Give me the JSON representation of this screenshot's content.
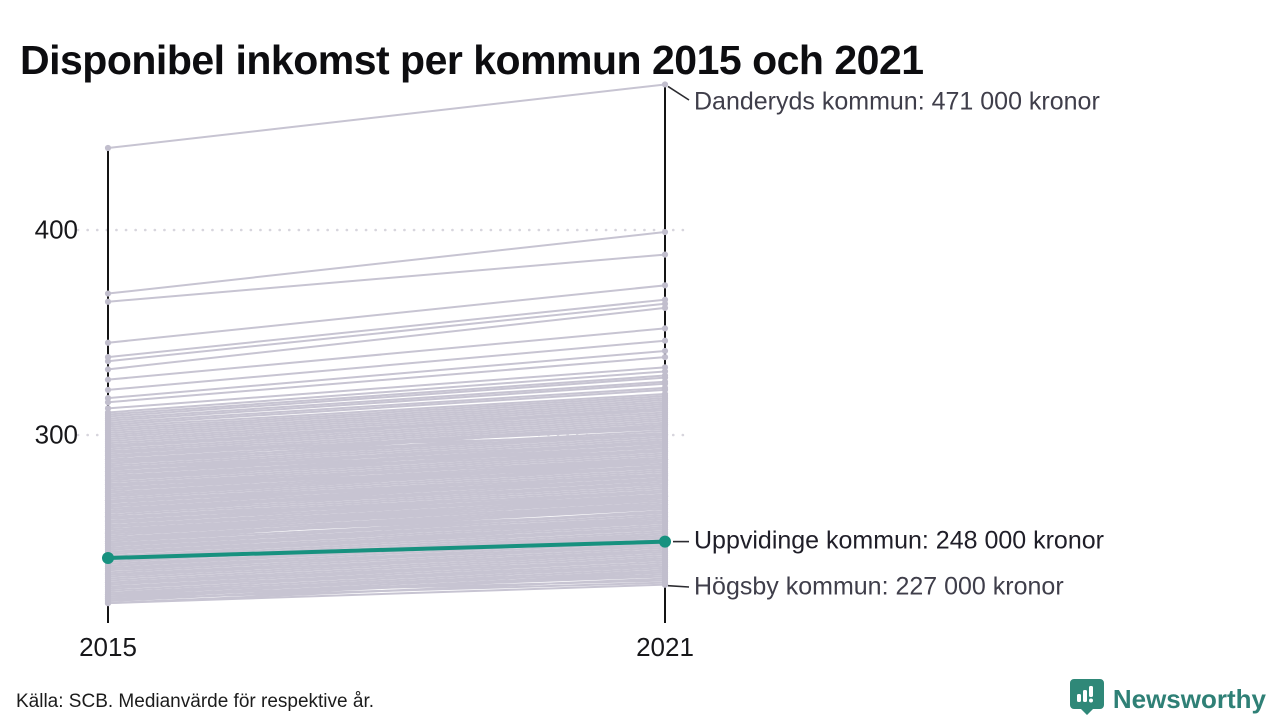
{
  "header": {
    "title": "Disponibel inkomst per kommun 2015 och 2021"
  },
  "footer": {
    "source": "Källa: SCB. Medianvärde för respektive år."
  },
  "brand": {
    "name": "Newsworthy",
    "logo_icon": "bar-chart-speech-bubble-icon",
    "color": "#2f8076"
  },
  "colors": {
    "background_line": "#c7c4d2",
    "background_dot": "#c1becd",
    "highlight": "#17917f",
    "axis": "#141414",
    "gridline": "#d7d5dd",
    "annotation_text": "#3f3e4a",
    "annotation_primary_text": "#1f1e28"
  },
  "chart_data": {
    "type": "line",
    "subtype": "slope-chart",
    "title": "Disponibel inkomst per kommun 2015 och 2021",
    "x_categories": [
      "2015",
      "2021"
    ],
    "xlabel": "",
    "ylabel": "",
    "yticks": [
      400,
      300
    ],
    "ylim": [
      207,
      476
    ],
    "grid": "dotted-horizontal",
    "legend": "none",
    "highlight_series": {
      "name": "Uppvidinge kommun",
      "values": [
        240,
        248
      ],
      "color": "#17917f"
    },
    "annotations": [
      {
        "id": "danderyd",
        "text": "Danderyds kommun: 471 000 kronor",
        "year": "2021",
        "value": 471,
        "style": "secondary"
      },
      {
        "id": "uppvidinge",
        "text": "Uppvidinge kommun: 248 000 kronor",
        "year": "2021",
        "value": 248,
        "style": "primary"
      },
      {
        "id": "hogsby",
        "text": "Högsby kommun: 227 000 kronor",
        "year": "2021",
        "value": 227,
        "style": "secondary"
      }
    ],
    "background_lines": [
      [
        440,
        471
      ],
      [
        369,
        399
      ],
      [
        365,
        388
      ],
      [
        345,
        373
      ],
      [
        338,
        366
      ],
      [
        336,
        364
      ],
      [
        332,
        362
      ],
      [
        327,
        352
      ],
      [
        322,
        346
      ],
      [
        318,
        341
      ],
      [
        316,
        338
      ],
      [
        313,
        333
      ],
      [
        311,
        331
      ],
      [
        310,
        329
      ],
      [
        309,
        328
      ],
      [
        308,
        326
      ],
      [
        307,
        325
      ],
      [
        306,
        323
      ],
      [
        305,
        322
      ],
      [
        304,
        320
      ],
      [
        303,
        319
      ],
      [
        302,
        318
      ],
      [
        301,
        317
      ],
      [
        300,
        316
      ],
      [
        299,
        315
      ],
      [
        298,
        314
      ],
      [
        297,
        313
      ],
      [
        296,
        312
      ],
      [
        295,
        311
      ],
      [
        294,
        310
      ],
      [
        293,
        309
      ],
      [
        292,
        308
      ],
      [
        291,
        307
      ],
      [
        290,
        306
      ],
      [
        289,
        305
      ],
      [
        288,
        304
      ],
      [
        287,
        302
      ],
      [
        286,
        301
      ],
      [
        285,
        300
      ],
      [
        284,
        299
      ],
      [
        283,
        298
      ],
      [
        282,
        297
      ],
      [
        281,
        296
      ],
      [
        280,
        295
      ],
      [
        279,
        294
      ],
      [
        278,
        293
      ],
      [
        277,
        292
      ],
      [
        276,
        291
      ],
      [
        275,
        290
      ],
      [
        274,
        289
      ],
      [
        273,
        288
      ],
      [
        272,
        287
      ],
      [
        271,
        286
      ],
      [
        270,
        285
      ],
      [
        269,
        284
      ],
      [
        268,
        283
      ],
      [
        267,
        282
      ],
      [
        266,
        281
      ],
      [
        265,
        280
      ],
      [
        264,
        279
      ],
      [
        263,
        278
      ],
      [
        262,
        277
      ],
      [
        261,
        276
      ],
      [
        260,
        275
      ],
      [
        288,
        300
      ],
      [
        284,
        296
      ],
      [
        280,
        292
      ],
      [
        276,
        288
      ],
      [
        272,
        284
      ],
      [
        268,
        280
      ],
      [
        264,
        276
      ],
      [
        260,
        272
      ],
      [
        259,
        274
      ],
      [
        258,
        273
      ],
      [
        257,
        272
      ],
      [
        256,
        271
      ],
      [
        255,
        270
      ],
      [
        254,
        269
      ],
      [
        253,
        268
      ],
      [
        252,
        267
      ],
      [
        251,
        266
      ],
      [
        250,
        265
      ],
      [
        258,
        270
      ],
      [
        254,
        266
      ],
      [
        250,
        262
      ],
      [
        249,
        264
      ],
      [
        248,
        262
      ],
      [
        247,
        261
      ],
      [
        246,
        260
      ],
      [
        245,
        259
      ],
      [
        244,
        258
      ],
      [
        243,
        257
      ],
      [
        242,
        256
      ],
      [
        241,
        255
      ],
      [
        240,
        254
      ],
      [
        239,
        253
      ],
      [
        238,
        252
      ],
      [
        237,
        251
      ],
      [
        236,
        250
      ],
      [
        235,
        249
      ],
      [
        247,
        258
      ],
      [
        243,
        254
      ],
      [
        239,
        250
      ],
      [
        235,
        246
      ],
      [
        234,
        248
      ],
      [
        233,
        247
      ],
      [
        232,
        246
      ],
      [
        231,
        245
      ],
      [
        230,
        244
      ],
      [
        229,
        243
      ],
      [
        228,
        242
      ],
      [
        227,
        241
      ],
      [
        226,
        240
      ],
      [
        232,
        243
      ],
      [
        228,
        239
      ],
      [
        225,
        239
      ],
      [
        224,
        238
      ],
      [
        223,
        237
      ],
      [
        222,
        236
      ],
      [
        221,
        235
      ],
      [
        220,
        234
      ],
      [
        226,
        236
      ],
      [
        223,
        233
      ],
      [
        221,
        231
      ],
      [
        219,
        232
      ],
      [
        218,
        230
      ],
      [
        222,
        229
      ],
      [
        220,
        228
      ],
      [
        219,
        233
      ],
      [
        218,
        227
      ],
      [
        246,
        263
      ],
      [
        252,
        270
      ],
      [
        262,
        281
      ],
      [
        270,
        288
      ],
      [
        278,
        297
      ],
      [
        286,
        305
      ],
      [
        294,
        313
      ],
      [
        256,
        268
      ],
      [
        244,
        260
      ],
      [
        266,
        278
      ],
      [
        274,
        286
      ],
      [
        282,
        294
      ],
      [
        290,
        303
      ],
      [
        248,
        266
      ],
      [
        252,
        264
      ],
      [
        260,
        270
      ],
      [
        268,
        278
      ],
      [
        276,
        284
      ],
      [
        284,
        292
      ],
      [
        292,
        300
      ],
      [
        236,
        252
      ],
      [
        240,
        258
      ]
    ]
  }
}
